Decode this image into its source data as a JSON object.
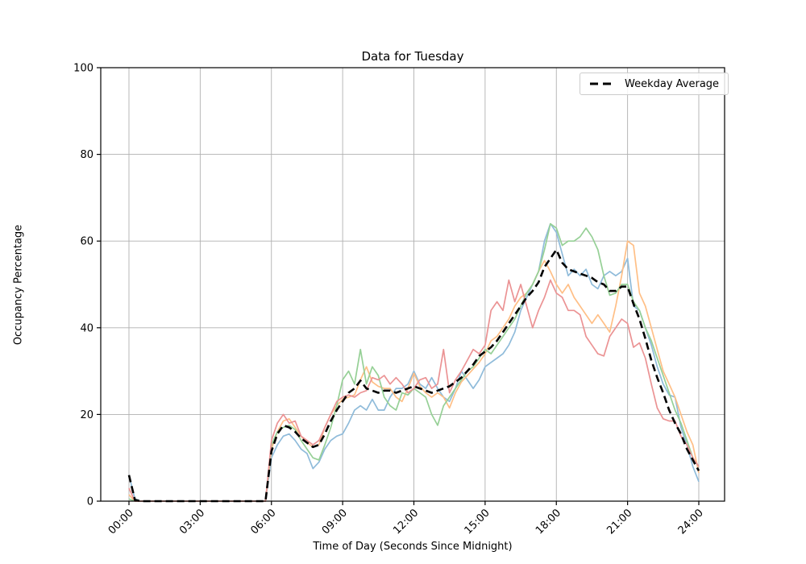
{
  "figure": {
    "background": "#ffffff",
    "title": "Data for Tuesday",
    "xlabel": "Time of Day (Seconds Since Midnight)",
    "ylabel": "Occupancy Percentage",
    "legend_label": "Weekday Average"
  },
  "chart_data": {
    "type": "line",
    "title": "Data for Tuesday",
    "xlabel": "Time of Day (Seconds Since Midnight)",
    "ylabel": "Occupancy Percentage",
    "grid": true,
    "legend_position": "upper right",
    "legend_entries": [
      "Weekday Average"
    ],
    "ylim": [
      0,
      100
    ],
    "y_ticks": [
      0,
      20,
      40,
      60,
      80,
      100
    ],
    "x_ticks_seconds": [
      0,
      10800,
      21600,
      32400,
      43200,
      54000,
      64800,
      75600,
      86400
    ],
    "x_tick_labels": [
      "00:00",
      "03:00",
      "06:00",
      "09:00",
      "12:00",
      "15:00",
      "18:00",
      "21:00",
      "24:00"
    ],
    "x_seconds_start": 0,
    "x_seconds_step": 900,
    "colors": {
      "grid": "#b0b0b0",
      "axes": "#000000",
      "average": "#000000",
      "series_blue": "#8fbbda",
      "series_orange": "#ffbf86",
      "series_green": "#96d096",
      "series_red": "#eb9394"
    },
    "series": [
      {
        "name": "blue",
        "color": "#8fbbda",
        "values": [
          6,
          0.5,
          0,
          0,
          0,
          0,
          0,
          0,
          0,
          0,
          0,
          0,
          0,
          0,
          0,
          0,
          0,
          0,
          0,
          0,
          0,
          0,
          0,
          0,
          10,
          13,
          15,
          15.5,
          14,
          12,
          11,
          7.5,
          9,
          12,
          14,
          15,
          15.5,
          18,
          21,
          22,
          21,
          23.5,
          21,
          21,
          24,
          26,
          26,
          27,
          30,
          27,
          26,
          28.5,
          26,
          24,
          23,
          26,
          30,
          28,
          26,
          28,
          31,
          32,
          33,
          34,
          36,
          39,
          44,
          47,
          50,
          53,
          60,
          64,
          62,
          57,
          52,
          53.5,
          52,
          53.5,
          50,
          49,
          52,
          53,
          52,
          53,
          56,
          45,
          44,
          40,
          36,
          31,
          27,
          24.5,
          24,
          17,
          13,
          8,
          4.5
        ]
      },
      {
        "name": "orange",
        "color": "#ffbf86",
        "values": [
          1.5,
          0,
          0,
          0,
          0,
          0,
          0,
          0,
          0,
          0,
          0,
          0,
          0,
          0,
          0,
          0,
          0,
          0,
          0,
          0,
          0,
          0,
          0,
          0,
          12,
          16,
          18.5,
          19,
          17,
          15,
          13.5,
          12.5,
          13,
          17,
          20,
          22,
          23.5,
          24,
          24.5,
          28,
          31,
          27.5,
          26.5,
          26,
          26,
          24,
          23,
          26,
          29.5,
          26.5,
          25,
          24,
          25,
          24,
          21.5,
          25,
          27.5,
          29,
          30.5,
          32,
          34,
          37,
          38,
          40,
          42,
          45,
          47,
          48,
          50,
          53,
          55.5,
          53,
          50,
          48,
          50,
          47,
          45,
          43,
          41,
          43,
          41,
          39,
          45,
          52,
          60,
          59,
          48,
          45,
          40,
          35,
          30,
          27,
          24,
          20,
          16,
          13,
          6.5
        ]
      },
      {
        "name": "green",
        "color": "#96d096",
        "values": [
          0.5,
          0,
          0,
          0,
          0,
          0,
          0,
          0,
          0,
          0,
          0,
          0,
          0,
          0,
          0,
          0,
          0,
          0,
          0,
          0,
          0,
          0,
          0,
          0,
          13,
          16,
          17,
          17.5,
          16.5,
          14,
          12,
          10,
          9.5,
          13,
          17,
          22,
          28,
          30,
          27,
          35,
          27,
          31,
          29,
          24,
          22,
          21,
          25,
          24.5,
          26,
          25,
          24,
          20,
          17.5,
          22,
          24,
          26,
          28,
          30,
          31,
          33,
          35,
          34,
          36,
          38,
          40,
          42,
          45,
          48,
          50,
          53,
          58,
          64,
          63,
          59,
          60,
          60,
          61,
          63,
          61,
          58,
          52,
          47.5,
          48,
          50,
          50,
          46,
          44,
          40,
          37,
          33,
          29,
          25,
          21,
          18,
          14,
          10,
          8
        ]
      },
      {
        "name": "red",
        "color": "#eb9394",
        "values": [
          3,
          0,
          0,
          0,
          0,
          0,
          0,
          0,
          0,
          0,
          0,
          0,
          0,
          0,
          0,
          0,
          0,
          0,
          0,
          0,
          0,
          0,
          0,
          0,
          14,
          18,
          20,
          18,
          18.5,
          15,
          14,
          13,
          14,
          17,
          20,
          23,
          24,
          24.5,
          24,
          25,
          25.5,
          28.5,
          28,
          29,
          27,
          28.5,
          27,
          25,
          26,
          28,
          28.5,
          26,
          27,
          35,
          25,
          28,
          30,
          32.5,
          35,
          34,
          36,
          44,
          46,
          44,
          51,
          46,
          50,
          45,
          40,
          44,
          47,
          51,
          48,
          47,
          44,
          44,
          43,
          38,
          36,
          34,
          33.5,
          38,
          40,
          42,
          41,
          35.5,
          36.5,
          33,
          27,
          21.5,
          19,
          18.5,
          18.5,
          15,
          13,
          10,
          8
        ]
      }
    ],
    "average_series": {
      "name": "Weekday Average",
      "color": "#000000",
      "style": "dashed",
      "line_width": 2.6,
      "values": [
        6,
        0.3,
        0,
        0,
        0,
        0,
        0,
        0,
        0,
        0,
        0,
        0,
        0,
        0,
        0,
        0,
        0,
        0,
        0,
        0,
        0,
        0,
        0,
        0,
        11.5,
        15.5,
        17.5,
        17,
        16,
        14.5,
        13.5,
        12.5,
        13,
        15.5,
        18.5,
        21,
        23,
        25,
        26,
        27.8,
        26,
        25.5,
        25,
        25.5,
        25.5,
        25,
        25.5,
        26,
        26.5,
        26,
        25.5,
        25,
        25.5,
        26,
        26.5,
        27.5,
        28.5,
        30,
        31.5,
        33.5,
        34.5,
        35.5,
        37,
        39,
        41,
        43,
        45,
        47,
        48.5,
        50.5,
        54,
        56,
        58,
        55,
        53.5,
        53,
        52.5,
        52,
        51.5,
        50.5,
        50,
        48.5,
        48.5,
        49.5,
        49.5,
        45.5,
        42,
        37.5,
        32.5,
        28.5,
        25,
        21,
        18,
        15.5,
        12,
        9.5,
        7
      ]
    }
  }
}
